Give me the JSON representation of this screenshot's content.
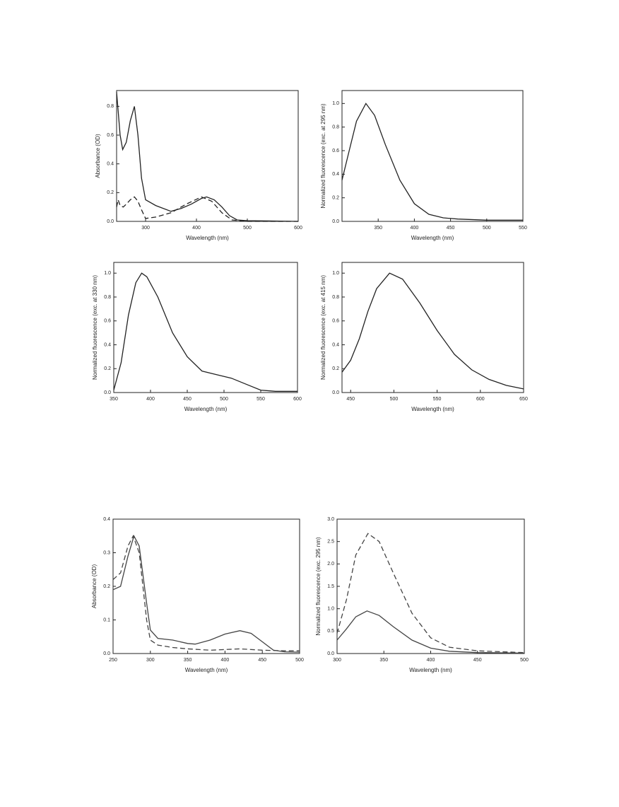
{
  "chart_data": [
    {
      "type": "line",
      "xlabel": "Wavelength (nm)",
      "ylabel": "Absorbance (OD)",
      "xlim": [
        243,
        600
      ],
      "ylim": [
        0,
        0.91
      ],
      "xticks": [
        300,
        400,
        500,
        600
      ],
      "yticks": [
        {
          "value": 0,
          "label": "0.0"
        },
        0.2,
        0.4,
        0.6,
        0.8
      ],
      "series": [
        {
          "color": "#222222",
          "style": "solid",
          "x": [
            243,
            250,
            255,
            262,
            270,
            278,
            285,
            292,
            300,
            320,
            350,
            370,
            390,
            410,
            420,
            435,
            450,
            465,
            480,
            500,
            600
          ],
          "values": [
            0.9,
            0.6,
            0.5,
            0.55,
            0.7,
            0.8,
            0.6,
            0.3,
            0.15,
            0.11,
            0.07,
            0.09,
            0.12,
            0.16,
            0.17,
            0.15,
            0.1,
            0.04,
            0.01,
            0.005,
            0.0
          ]
        },
        {
          "color": "#222222",
          "style": "dashed",
          "x": [
            243,
            246,
            250,
            256,
            262,
            270,
            278,
            285,
            292,
            300,
            320,
            350,
            380,
            410,
            430,
            450,
            470,
            500,
            600
          ],
          "values": [
            0.1,
            0.15,
            0.11,
            0.1,
            0.12,
            0.15,
            0.17,
            0.14,
            0.08,
            0.02,
            0.03,
            0.06,
            0.12,
            0.17,
            0.14,
            0.06,
            0.01,
            0.0,
            0.0
          ]
        }
      ]
    },
    {
      "type": "line",
      "xlabel": "Wavelength (nm)",
      "ylabel": "Normalized fluorescence (exc. at 295 nm)",
      "xlim": [
        300,
        550
      ],
      "ylim": [
        0,
        1.11
      ],
      "xticks": [
        350,
        400,
        450,
        500,
        550
      ],
      "yticks": [
        {
          "value": 0,
          "label": "0.0"
        },
        0.2,
        0.4,
        0.6,
        0.8,
        {
          "value": 1,
          "label": "1.0"
        }
      ],
      "series": [
        {
          "color": "#222222",
          "style": "solid",
          "x": [
            300,
            310,
            320,
            333,
            345,
            360,
            380,
            400,
            420,
            440,
            460,
            500,
            550
          ],
          "values": [
            0.35,
            0.6,
            0.85,
            1.0,
            0.9,
            0.65,
            0.35,
            0.15,
            0.06,
            0.03,
            0.02,
            0.01,
            0.01
          ]
        }
      ]
    },
    {
      "type": "line",
      "xlabel": "Wavelength (nm)",
      "ylabel": "Normalized fluorescence (exc. at 330 nm)",
      "xlim": [
        350,
        600
      ],
      "ylim": [
        0,
        1.09
      ],
      "xticks": [
        350,
        400,
        450,
        500,
        550,
        600
      ],
      "yticks": [
        {
          "value": 0,
          "label": "0.0"
        },
        0.2,
        0.4,
        0.6,
        0.8,
        {
          "value": 1,
          "label": "1.0"
        }
      ],
      "series": [
        {
          "color": "#222222",
          "style": "solid",
          "x": [
            350,
            360,
            370,
            380,
            388,
            395,
            410,
            430,
            450,
            470,
            490,
            510,
            530,
            550,
            570,
            600
          ],
          "values": [
            0.02,
            0.25,
            0.65,
            0.92,
            1.0,
            0.97,
            0.8,
            0.5,
            0.3,
            0.18,
            0.15,
            0.12,
            0.07,
            0.02,
            0.01,
            0.01
          ]
        }
      ]
    },
    {
      "type": "line",
      "xlabel": "Wavelength (nm)",
      "ylabel": "Normalized fluorescence (exc. at 415 nm)",
      "xlim": [
        440,
        650
      ],
      "ylim": [
        0,
        1.09
      ],
      "xticks": [
        450,
        500,
        550,
        600,
        650
      ],
      "yticks": [
        {
          "value": 0,
          "label": "0.0"
        },
        0.2,
        0.4,
        0.6,
        0.8,
        {
          "value": 1,
          "label": "1.0"
        }
      ],
      "series": [
        {
          "color": "#222222",
          "style": "solid",
          "x": [
            440,
            450,
            460,
            470,
            480,
            495,
            510,
            530,
            550,
            570,
            590,
            610,
            630,
            650
          ],
          "values": [
            0.17,
            0.27,
            0.45,
            0.68,
            0.87,
            1.0,
            0.95,
            0.75,
            0.52,
            0.32,
            0.19,
            0.11,
            0.06,
            0.03
          ]
        }
      ]
    },
    {
      "type": "line",
      "xlabel": "Wavelength (nm)",
      "ylabel": "Absorbance (OD)",
      "xlim": [
        250,
        500
      ],
      "ylim": [
        0,
        0.4
      ],
      "xticks": [
        250,
        300,
        350,
        400,
        450,
        500
      ],
      "yticks": [
        {
          "value": 0,
          "label": "0.0"
        },
        0.1,
        0.2,
        0.3,
        0.4
      ],
      "series": [
        {
          "color": "#444444",
          "style": "solid",
          "x": [
            250,
            260,
            270,
            278,
            285,
            295,
            300,
            310,
            330,
            350,
            360,
            380,
            400,
            420,
            435,
            450,
            465,
            480,
            500
          ],
          "values": [
            0.19,
            0.2,
            0.29,
            0.35,
            0.32,
            0.15,
            0.07,
            0.045,
            0.04,
            0.03,
            0.028,
            0.04,
            0.058,
            0.068,
            0.06,
            0.035,
            0.01,
            0.005,
            0.004
          ]
        },
        {
          "color": "#444444",
          "style": "dashed",
          "x": [
            250,
            260,
            270,
            277,
            285,
            295,
            300,
            310,
            330,
            350,
            380,
            420,
            450,
            480,
            500
          ],
          "values": [
            0.22,
            0.24,
            0.32,
            0.35,
            0.3,
            0.1,
            0.04,
            0.025,
            0.018,
            0.014,
            0.01,
            0.014,
            0.01,
            0.008,
            0.008
          ]
        }
      ]
    },
    {
      "type": "line",
      "xlabel": "Wavelength (nm)",
      "ylabel": "Normalized fluorescence (exc. 295 nm)",
      "xlim": [
        300,
        500
      ],
      "ylim": [
        0,
        3
      ],
      "xticks": [
        300,
        350,
        400,
        450,
        500
      ],
      "yticks": [
        {
          "value": 0,
          "label": "0.0"
        },
        0.5,
        {
          "value": 1,
          "label": "1.0"
        },
        1.5,
        {
          "value": 2,
          "label": "2.0"
        },
        2.5,
        {
          "value": 3,
          "label": "3.0"
        }
      ],
      "series": [
        {
          "color": "#444444",
          "style": "solid",
          "x": [
            300,
            310,
            320,
            332,
            345,
            360,
            380,
            400,
            420,
            450,
            500
          ],
          "values": [
            0.3,
            0.55,
            0.82,
            0.95,
            0.85,
            0.6,
            0.3,
            0.12,
            0.05,
            0.02,
            0.01
          ]
        },
        {
          "color": "#444444",
          "style": "dashed",
          "x": [
            300,
            310,
            320,
            333,
            345,
            360,
            380,
            400,
            420,
            450,
            500
          ],
          "values": [
            0.45,
            1.2,
            2.2,
            2.68,
            2.5,
            1.8,
            0.9,
            0.35,
            0.14,
            0.06,
            0.02
          ]
        }
      ]
    }
  ]
}
